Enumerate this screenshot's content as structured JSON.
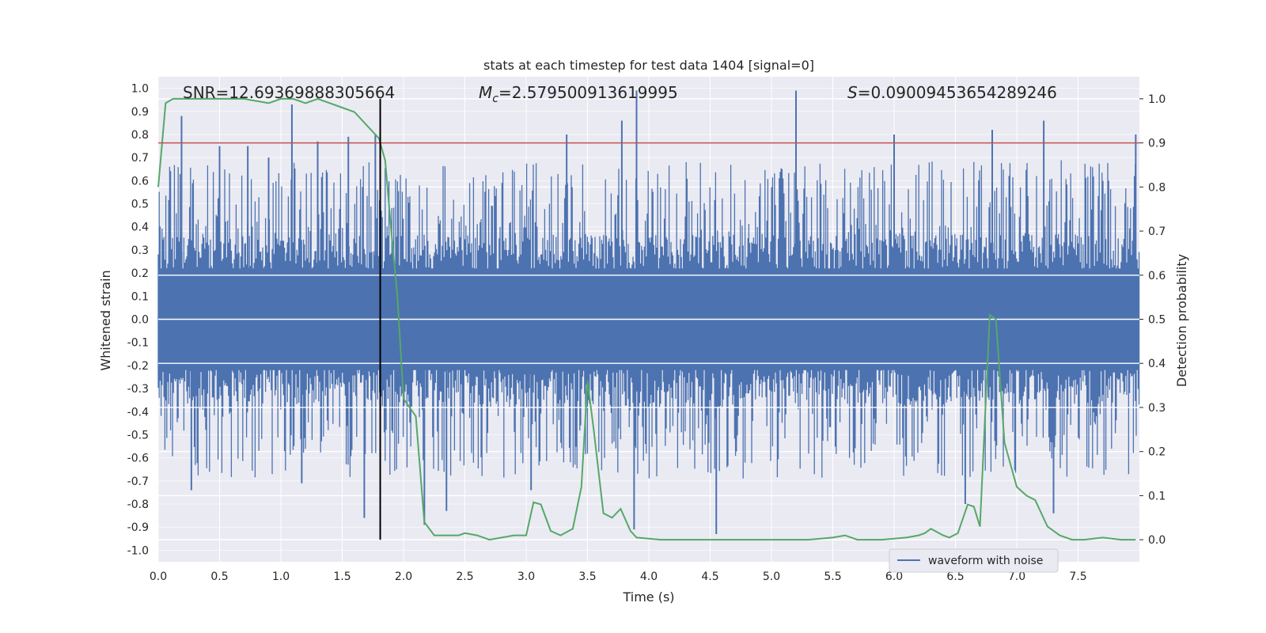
{
  "chart_data": {
    "type": "line",
    "title": "stats at each timestep for test data 1404 [signal=0]",
    "xlabel": "Time (s)",
    "ylabel_left": "Whitened strain",
    "ylabel_right": "Detection probability",
    "xlim": [
      0.0,
      8.0
    ],
    "ylim_left": [
      -1.05,
      1.05
    ],
    "ylim_right": [
      -0.05,
      1.05
    ],
    "grid": true,
    "x_ticks": [
      "0.0",
      "0.5",
      "1.0",
      "1.5",
      "2.0",
      "2.5",
      "3.0",
      "3.5",
      "4.0",
      "4.5",
      "5.0",
      "5.5",
      "6.0",
      "6.5",
      "7.0",
      "7.5"
    ],
    "y_left_ticks": [
      "1.0",
      "0.9",
      "0.8",
      "0.7",
      "0.6",
      "0.5",
      "0.4",
      "0.3",
      "0.2",
      "0.1",
      "0.0",
      "-0.1",
      "-0.2",
      "-0.3",
      "-0.4",
      "-0.5",
      "-0.6",
      "-0.7",
      "-0.8",
      "-0.9",
      "-1.0"
    ],
    "y_right_ticks": [
      "1.0",
      "0.9",
      "0.8",
      "0.7",
      "0.6",
      "0.5",
      "0.4",
      "0.3",
      "0.2",
      "0.1",
      "0.0"
    ],
    "annotations": {
      "snr": "SNR=12.69369888305664",
      "mc_symbol": "M",
      "mc_sub": "c",
      "mc_value": "=2.579500913619995",
      "s_symbol": "S",
      "s_value": "=0.09009453654289246"
    },
    "threshold": {
      "value": 0.9,
      "axis": "right",
      "color": "#c44e52"
    },
    "marker_time": 1.81,
    "legend": {
      "label": "waveform with noise",
      "location": "lower-right"
    },
    "waveform": {
      "name": "waveform with noise",
      "color": "#4c72b0",
      "core_amplitude": 0.37,
      "spikes": [
        {
          "t": 0.19,
          "v": 0.88
        },
        {
          "t": 0.5,
          "v": 0.75
        },
        {
          "t": 0.73,
          "v": 0.75
        },
        {
          "t": 0.9,
          "v": 0.7
        },
        {
          "t": 1.09,
          "v": 0.93
        },
        {
          "t": 1.3,
          "v": 0.77
        },
        {
          "t": 1.55,
          "v": 0.79
        },
        {
          "t": 1.77,
          "v": 0.8
        },
        {
          "t": 3.33,
          "v": 0.8
        },
        {
          "t": 3.78,
          "v": 0.86
        },
        {
          "t": 3.9,
          "v": 0.99
        },
        {
          "t": 5.2,
          "v": 0.99
        },
        {
          "t": 6.0,
          "v": 0.8
        },
        {
          "t": 6.8,
          "v": 0.82
        },
        {
          "t": 7.22,
          "v": 0.86
        },
        {
          "t": 7.97,
          "v": 0.8
        },
        {
          "t": 1.68,
          "v": -0.86
        },
        {
          "t": 2.17,
          "v": -0.89
        },
        {
          "t": 3.88,
          "v": -0.91
        },
        {
          "t": 4.55,
          "v": -0.93
        },
        {
          "t": 7.3,
          "v": -0.84
        },
        {
          "t": 0.27,
          "v": -0.74
        },
        {
          "t": 1.17,
          "v": -0.71
        },
        {
          "t": 2.35,
          "v": -0.83
        },
        {
          "t": 3.04,
          "v": -0.74
        },
        {
          "t": 6.58,
          "v": -0.8
        }
      ]
    },
    "probability": {
      "name": "detection probability",
      "color": "#55a868",
      "t": [
        0.0,
        0.06,
        0.12,
        0.3,
        0.5,
        0.7,
        0.9,
        1.0,
        1.1,
        1.2,
        1.3,
        1.4,
        1.5,
        1.6,
        1.7,
        1.8,
        1.85,
        1.9,
        1.95,
        2.0,
        2.1,
        2.17,
        2.25,
        2.35,
        2.45,
        2.5,
        2.6,
        2.7,
        2.8,
        2.9,
        3.0,
        3.06,
        3.12,
        3.2,
        3.28,
        3.38,
        3.45,
        3.5,
        3.55,
        3.63,
        3.7,
        3.77,
        3.85,
        3.9,
        4.1,
        4.3,
        4.5,
        4.7,
        4.9,
        5.1,
        5.3,
        5.5,
        5.6,
        5.7,
        5.9,
        6.1,
        6.2,
        6.25,
        6.3,
        6.4,
        6.45,
        6.52,
        6.6,
        6.65,
        6.7,
        6.78,
        6.83,
        6.9,
        7.0,
        7.08,
        7.15,
        7.25,
        7.35,
        7.45,
        7.55,
        7.7,
        7.85,
        7.97
      ],
      "p": [
        0.8,
        0.99,
        1.0,
        1.0,
        1.0,
        1.0,
        0.99,
        1.0,
        1.0,
        0.99,
        1.0,
        0.99,
        0.98,
        0.97,
        0.94,
        0.91,
        0.86,
        0.7,
        0.55,
        0.32,
        0.28,
        0.04,
        0.01,
        0.01,
        0.01,
        0.015,
        0.01,
        0.0,
        0.005,
        0.01,
        0.01,
        0.085,
        0.08,
        0.02,
        0.01,
        0.025,
        0.12,
        0.36,
        0.25,
        0.06,
        0.05,
        0.07,
        0.02,
        0.005,
        0.0,
        0.0,
        0.0,
        0.0,
        0.0,
        0.0,
        0.0,
        0.005,
        0.01,
        0.0,
        0.0,
        0.005,
        0.01,
        0.015,
        0.025,
        0.01,
        0.005,
        0.015,
        0.08,
        0.075,
        0.03,
        0.51,
        0.5,
        0.22,
        0.12,
        0.1,
        0.09,
        0.03,
        0.01,
        0.0,
        0.0,
        0.005,
        0.0,
        0.0
      ]
    }
  }
}
